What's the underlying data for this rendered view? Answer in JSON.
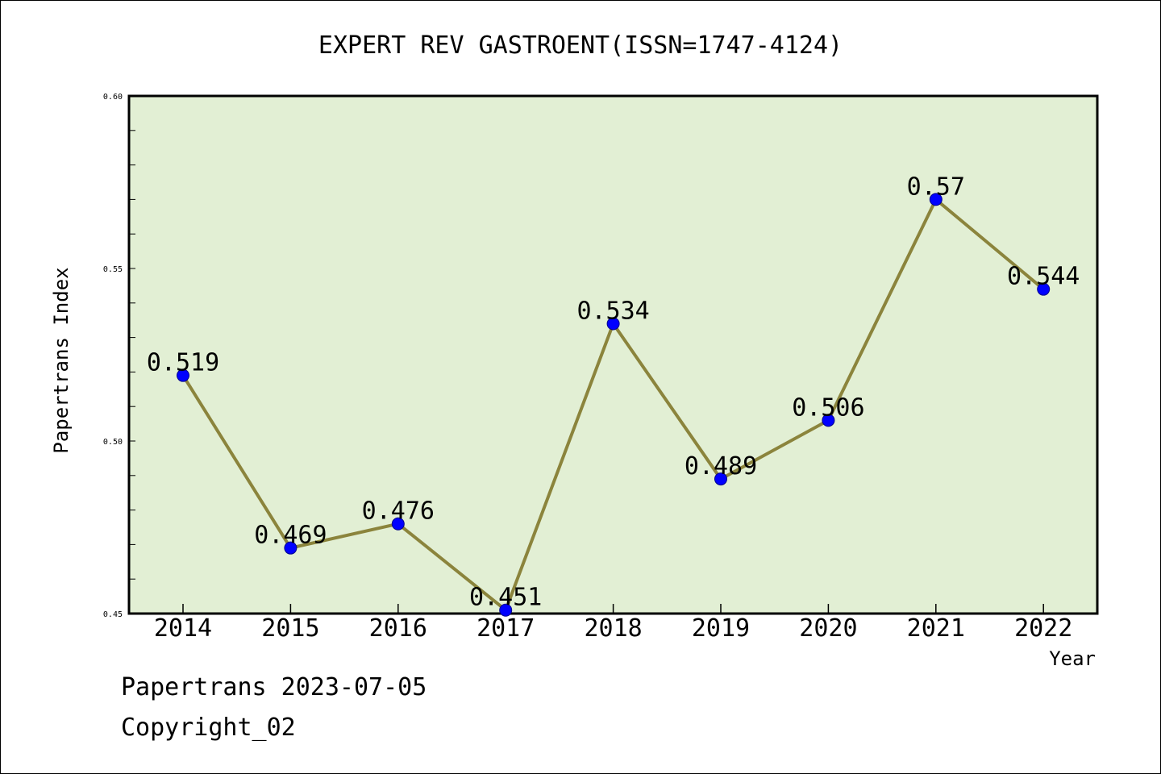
{
  "chart_data": {
    "type": "line",
    "title": "EXPERT REV GASTROENT(ISSN=1747-4124)",
    "xlabel": "Year",
    "ylabel": "Papertrans Index",
    "categories": [
      "2014",
      "2015",
      "2016",
      "2017",
      "2018",
      "2019",
      "2020",
      "2021",
      "2022"
    ],
    "values": [
      0.519,
      0.469,
      0.476,
      0.451,
      0.534,
      0.489,
      0.506,
      0.57,
      0.544
    ],
    "data_labels": [
      "0.519",
      "0.469",
      "0.476",
      "0.451",
      "0.534",
      "0.489",
      "0.506",
      "0.57",
      "0.544"
    ],
    "ylim": [
      0.45,
      0.6
    ],
    "yticks": [
      "0.45",
      "0.50",
      "0.55",
      "0.60"
    ],
    "grid": false,
    "colors": {
      "plot_background": "#e2efd4",
      "line": "#8b843c",
      "marker": "#0000ff"
    }
  },
  "footer": {
    "line1": "Papertrans 2023-07-05",
    "line2": "Copyright_02"
  }
}
